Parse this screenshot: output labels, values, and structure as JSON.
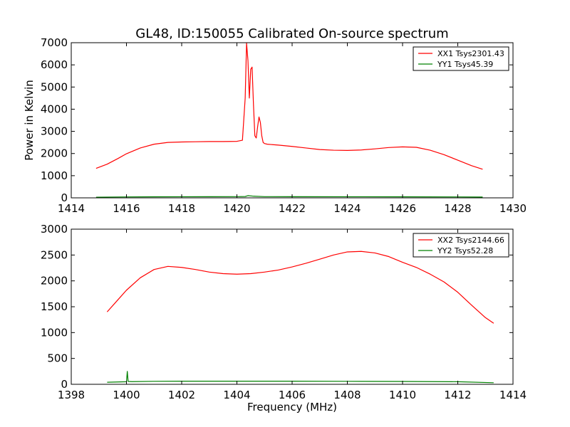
{
  "figure": {
    "title": "GL48, ID:150055 Calibrated On-source spectrum"
  },
  "colors": {
    "xx": "#ff0000",
    "yy": "#008000",
    "axes": "#000000",
    "background": "#ffffff"
  },
  "chart_data": [
    {
      "type": "line",
      "title": "GL48, ID:150055 Calibrated On-source spectrum",
      "xlabel": "",
      "ylabel": "Power in Kelvin",
      "xlim": [
        1414,
        1430
      ],
      "ylim": [
        0,
        7000
      ],
      "xticks": [
        "1414",
        "1416",
        "1418",
        "1420",
        "1422",
        "1424",
        "1426",
        "1428",
        "1430"
      ],
      "yticks": [
        "0",
        "1000",
        "2000",
        "3000",
        "4000",
        "5000",
        "6000",
        "7000"
      ],
      "grid": false,
      "legend_position": "top-right",
      "series": [
        {
          "name": "XX1 Tsys2301.43",
          "color": "#ff0000",
          "x": [
            1414.9,
            1415.3,
            1415.7,
            1416.0,
            1416.5,
            1417.0,
            1417.5,
            1418.0,
            1418.5,
            1419.0,
            1419.5,
            1420.0,
            1420.2,
            1420.3,
            1420.35,
            1420.4,
            1420.45,
            1420.5,
            1420.55,
            1420.6,
            1420.65,
            1420.7,
            1420.75,
            1420.8,
            1420.85,
            1420.9,
            1420.95,
            1421.0,
            1421.1,
            1421.5,
            1422.0,
            1422.5,
            1423.0,
            1423.5,
            1424.0,
            1424.5,
            1425.0,
            1425.5,
            1426.0,
            1426.5,
            1427.0,
            1427.5,
            1428.0,
            1428.5,
            1428.9
          ],
          "y": [
            1330,
            1520,
            1780,
            1990,
            2250,
            2420,
            2500,
            2520,
            2530,
            2540,
            2540,
            2550,
            2600,
            4500,
            6980,
            6200,
            4500,
            5800,
            5900,
            4200,
            2800,
            2700,
            3200,
            3650,
            3400,
            2800,
            2500,
            2450,
            2420,
            2380,
            2320,
            2250,
            2180,
            2150,
            2140,
            2160,
            2210,
            2270,
            2300,
            2280,
            2150,
            1950,
            1700,
            1450,
            1290
          ]
        },
        {
          "name": "YY1 Tsys45.39",
          "color": "#008000",
          "x": [
            1414.9,
            1416.0,
            1417.0,
            1418.0,
            1419.0,
            1420.0,
            1420.3,
            1420.4,
            1420.6,
            1421.0,
            1422.0,
            1424.0,
            1426.0,
            1428.0,
            1428.9
          ],
          "y": [
            30,
            42,
            48,
            50,
            52,
            55,
            60,
            100,
            75,
            55,
            52,
            50,
            48,
            42,
            35
          ]
        }
      ]
    },
    {
      "type": "line",
      "title": "",
      "xlabel": "Frequency (MHz)",
      "ylabel": "",
      "xlim": [
        1398,
        1414
      ],
      "ylim": [
        0,
        3000
      ],
      "xticks": [
        "1398",
        "1400",
        "1402",
        "1404",
        "1406",
        "1408",
        "1410",
        "1412",
        "1414"
      ],
      "yticks": [
        "0",
        "500",
        "1000",
        "1500",
        "2000",
        "2500",
        "3000"
      ],
      "grid": false,
      "legend_position": "top-right",
      "series": [
        {
          "name": "XX2 Tsys2144.66",
          "color": "#ff0000",
          "x": [
            1399.3,
            1399.7,
            1400.0,
            1400.5,
            1401.0,
            1401.5,
            1402.0,
            1402.5,
            1403.0,
            1403.5,
            1404.0,
            1404.5,
            1405.0,
            1405.5,
            1406.0,
            1406.5,
            1407.0,
            1407.5,
            1408.0,
            1408.5,
            1409.0,
            1409.5,
            1410.0,
            1410.5,
            1411.0,
            1411.5,
            1412.0,
            1412.5,
            1413.0,
            1413.3
          ],
          "y": [
            1400,
            1640,
            1820,
            2060,
            2220,
            2280,
            2260,
            2220,
            2170,
            2140,
            2130,
            2140,
            2170,
            2210,
            2270,
            2340,
            2420,
            2500,
            2560,
            2570,
            2540,
            2470,
            2360,
            2260,
            2130,
            1980,
            1780,
            1530,
            1290,
            1180
          ]
        },
        {
          "name": "YY2 Tsys52.28",
          "color": "#008000",
          "x": [
            1399.3,
            1399.9,
            1400.0,
            1400.03,
            1400.06,
            1400.2,
            1401.0,
            1402.0,
            1404.0,
            1406.0,
            1408.0,
            1410.0,
            1412.0,
            1413.3
          ],
          "y": [
            40,
            48,
            50,
            250,
            55,
            52,
            58,
            60,
            60,
            60,
            58,
            55,
            50,
            30
          ]
        }
      ]
    }
  ]
}
